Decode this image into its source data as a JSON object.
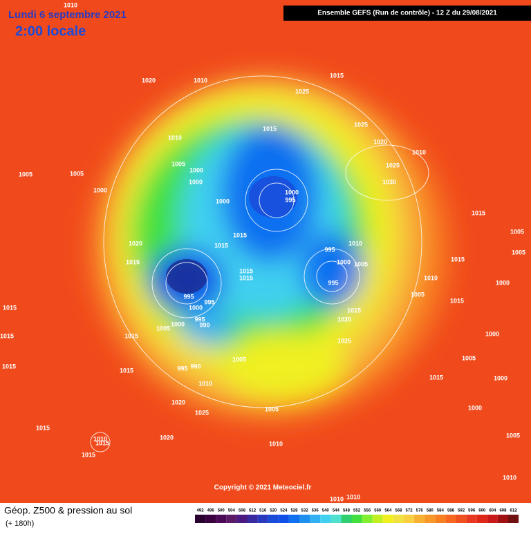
{
  "header": {
    "date": "Lundi 6 septembre 2021",
    "time": "2:00 locale",
    "run": "Ensemble GEFS  (Run de contrôle)  -  12 Z du 29/08/2021"
  },
  "footer": {
    "title": "Géop. Z500 & pression au sol",
    "lead": "(+ 180h)",
    "copyright": "Copyright © 2021 Meteociel.fr"
  },
  "scale": {
    "values": [
      492,
      496,
      500,
      504,
      508,
      512,
      516,
      520,
      524,
      528,
      532,
      536,
      540,
      544,
      548,
      552,
      556,
      560,
      564,
      568,
      572,
      576,
      580,
      584,
      588,
      592,
      596,
      600,
      604,
      608,
      612
    ],
    "colors": [
      "#2a0030",
      "#3a0040",
      "#4a0a55",
      "#5a1a66",
      "#4a1a80",
      "#3a2aa0",
      "#2a3ac0",
      "#1a4ad8",
      "#1050e8",
      "#1070f0",
      "#2090f0",
      "#30b0f0",
      "#40d0f0",
      "#50e0d0",
      "#30d070",
      "#40e040",
      "#80f030",
      "#c0f020",
      "#f0f020",
      "#f0e040",
      "#f8d040",
      "#f8b030",
      "#f89828",
      "#f88020",
      "#f86820",
      "#f05020",
      "#e83820",
      "#e02818",
      "#c81818",
      "#a01010",
      "#701010"
    ]
  },
  "isobars": [
    "1010",
    "1020",
    "1010",
    "1025",
    "1015",
    "1025",
    "1015",
    "1020",
    "1010",
    "1010",
    "1005",
    "1000",
    "1025",
    "1005",
    "1005",
    "1030",
    "1000",
    "1000",
    "1000",
    "995",
    "1000",
    "1015",
    "1015",
    "1020",
    "1015",
    "995",
    "1010",
    "1005",
    "1005",
    "1000",
    "1015",
    "1005",
    "1015",
    "1015",
    "1015",
    "1010",
    "995",
    "1000",
    "995",
    "995",
    "1000",
    "1005",
    "1015",
    "1015",
    "1015",
    "995",
    "1020",
    "1000",
    "990",
    "1005",
    "1015",
    "1015",
    "1000",
    "1025",
    "1005",
    "1005",
    "995",
    "990",
    "1015",
    "1015",
    "1010",
    "1015",
    "1000",
    "1020",
    "1005",
    "1000",
    "1025",
    "1015",
    "1005",
    "1010",
    "1020",
    "1015",
    "1015",
    "1010",
    "1010",
    "1010",
    "1010"
  ]
}
